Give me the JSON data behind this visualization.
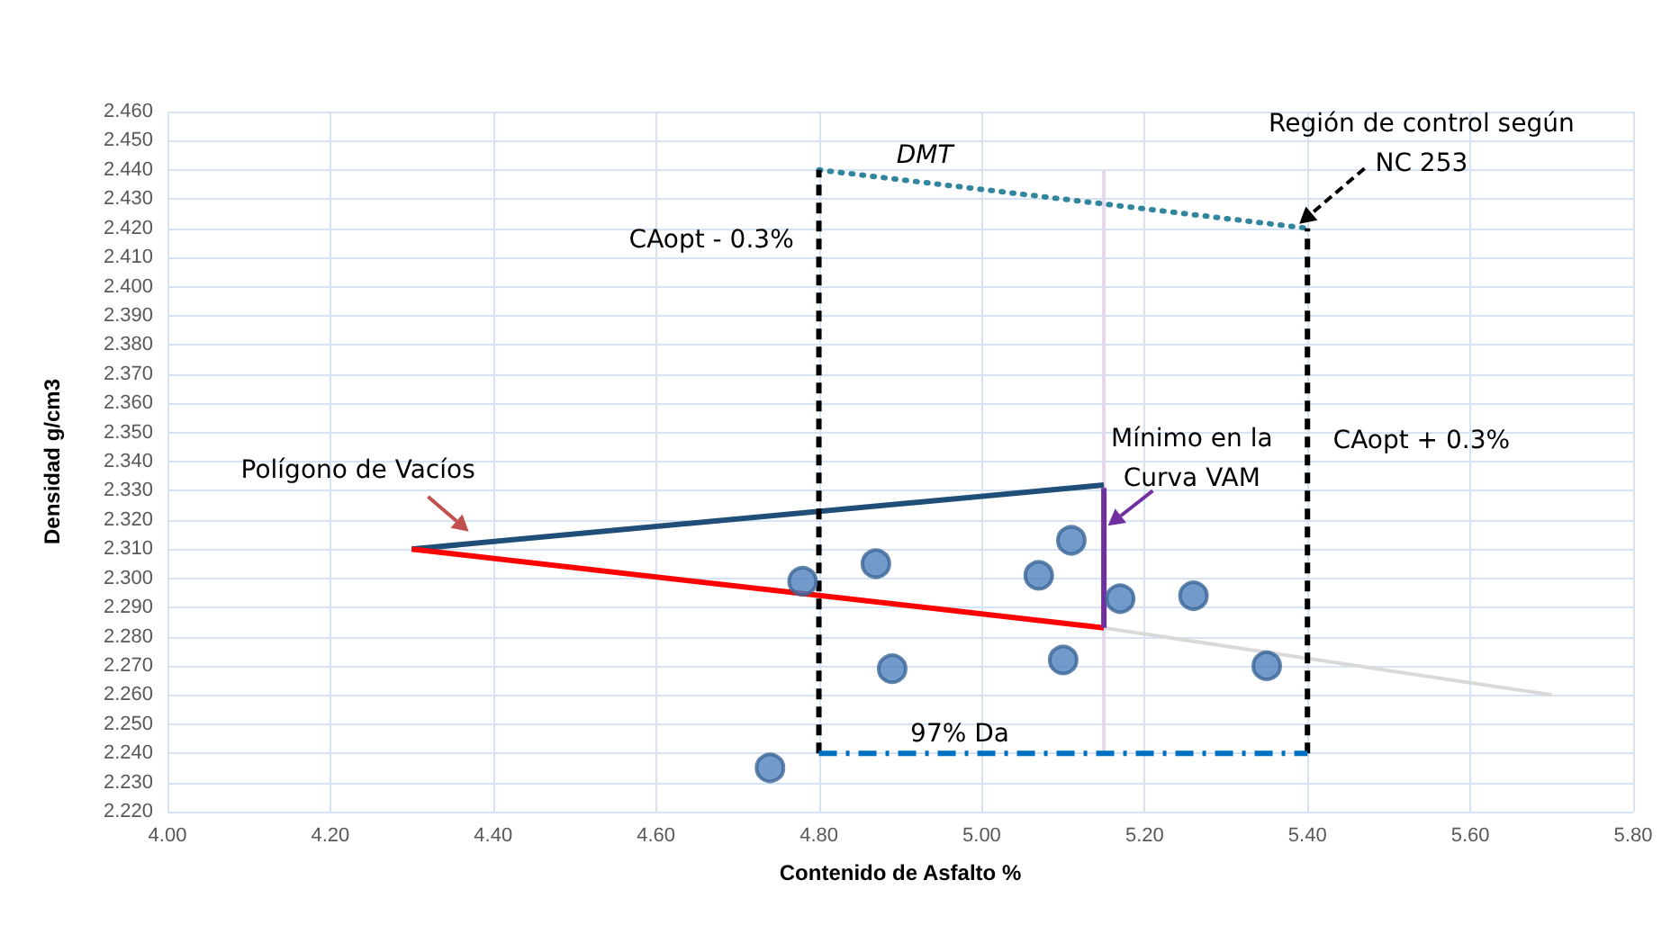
{
  "chart_data": {
    "type": "scatter",
    "xlabel": "Contenido de Asfalto %",
    "ylabel": "Densidad g/cm3",
    "xlim": [
      4.0,
      5.8
    ],
    "xticks": [
      {
        "value": 4.0,
        "label": "4.00"
      },
      {
        "value": 4.2,
        "label": "4.20"
      },
      {
        "value": 4.4,
        "label": "4.40"
      },
      {
        "value": 4.6,
        "label": "4.60"
      },
      {
        "value": 4.8,
        "label": "4.80"
      },
      {
        "value": 5.0,
        "label": "5.00"
      },
      {
        "value": 5.2,
        "label": "5.20"
      },
      {
        "value": 5.4,
        "label": "5.40"
      },
      {
        "value": 5.6,
        "label": "5.60"
      },
      {
        "value": 5.8,
        "label": "5.80"
      }
    ],
    "ylim": [
      2.22,
      2.46
    ],
    "yticks": [
      {
        "value": 2.22,
        "label": "2.220"
      },
      {
        "value": 2.23,
        "label": "2.230"
      },
      {
        "value": 2.24,
        "label": "2.240"
      },
      {
        "value": 2.25,
        "label": "2.250"
      },
      {
        "value": 2.26,
        "label": "2.260"
      },
      {
        "value": 2.27,
        "label": "2.270"
      },
      {
        "value": 2.28,
        "label": "2.280"
      },
      {
        "value": 2.29,
        "label": "2.290"
      },
      {
        "value": 2.3,
        "label": "2.300"
      },
      {
        "value": 2.31,
        "label": "2.310"
      },
      {
        "value": 2.32,
        "label": "2.320"
      },
      {
        "value": 2.33,
        "label": "2.330"
      },
      {
        "value": 2.34,
        "label": "2.340"
      },
      {
        "value": 2.35,
        "label": "2.350"
      },
      {
        "value": 2.36,
        "label": "2.360"
      },
      {
        "value": 2.37,
        "label": "2.370"
      },
      {
        "value": 2.38,
        "label": "2.380"
      },
      {
        "value": 2.39,
        "label": "2.390"
      },
      {
        "value": 2.4,
        "label": "2.400"
      },
      {
        "value": 2.41,
        "label": "2.410"
      },
      {
        "value": 2.42,
        "label": "2.420"
      },
      {
        "value": 2.43,
        "label": "2.430"
      },
      {
        "value": 2.44,
        "label": "2.440"
      },
      {
        "value": 2.45,
        "label": "2.450"
      },
      {
        "value": 2.46,
        "label": "2.460"
      }
    ],
    "grid": true,
    "series": [
      {
        "type": "line",
        "color": "#d9d9d9",
        "x": [
          5.15,
          5.7
        ],
        "values": [
          2.283,
          2.26
        ],
        "line_style": "solid"
      },
      {
        "type": "line",
        "color": "#e4d7ee",
        "x": [
          5.15,
          5.15
        ],
        "values": [
          2.24,
          2.44
        ],
        "line_style": "solid"
      },
      {
        "type": "line",
        "color": "#1f4e79",
        "x": [
          4.3,
          5.15
        ],
        "values": [
          2.31,
          2.332
        ],
        "line_style": "solid"
      },
      {
        "type": "line",
        "color": "#ff0000",
        "x": [
          4.3,
          5.15
        ],
        "values": [
          2.31,
          2.283
        ],
        "line_style": "solid"
      },
      {
        "type": "line",
        "color": "#7030a0",
        "x": [
          5.15,
          5.15
        ],
        "values": [
          2.283,
          2.331
        ],
        "line_style": "solid"
      },
      {
        "type": "line",
        "color": "#31859c",
        "x": [
          4.8,
          5.4
        ],
        "values": [
          2.44,
          2.42
        ],
        "line_style": "dotted"
      },
      {
        "type": "line",
        "color": "#000000",
        "x": [
          4.8,
          4.8
        ],
        "values": [
          2.24,
          2.44
        ],
        "line_style": "dashed"
      },
      {
        "type": "line",
        "color": "#000000",
        "x": [
          5.4,
          5.4
        ],
        "values": [
          2.24,
          2.42
        ],
        "line_style": "dashed"
      },
      {
        "type": "line",
        "color": "#0070c0",
        "x": [
          4.8,
          5.4
        ],
        "values": [
          2.24,
          2.24
        ],
        "line_style": "dashdot"
      },
      {
        "marker": "circle",
        "color": "#4f81bd",
        "x": [
          4.74,
          4.78,
          4.87,
          4.89,
          5.07,
          5.11,
          5.1,
          5.17,
          5.26,
          5.35
        ],
        "values": [
          2.235,
          2.299,
          2.305,
          2.269,
          2.301,
          2.313,
          2.272,
          2.293,
          2.294,
          2.27
        ]
      }
    ],
    "annotations": [
      "DMT",
      "Región de control según\nNC 253",
      "CAopt - 0.3%",
      "CAopt + 0.3%",
      "Polígono de Vacíos",
      "Mínimo en la\nCurva VAM",
      "97% Da"
    ]
  }
}
